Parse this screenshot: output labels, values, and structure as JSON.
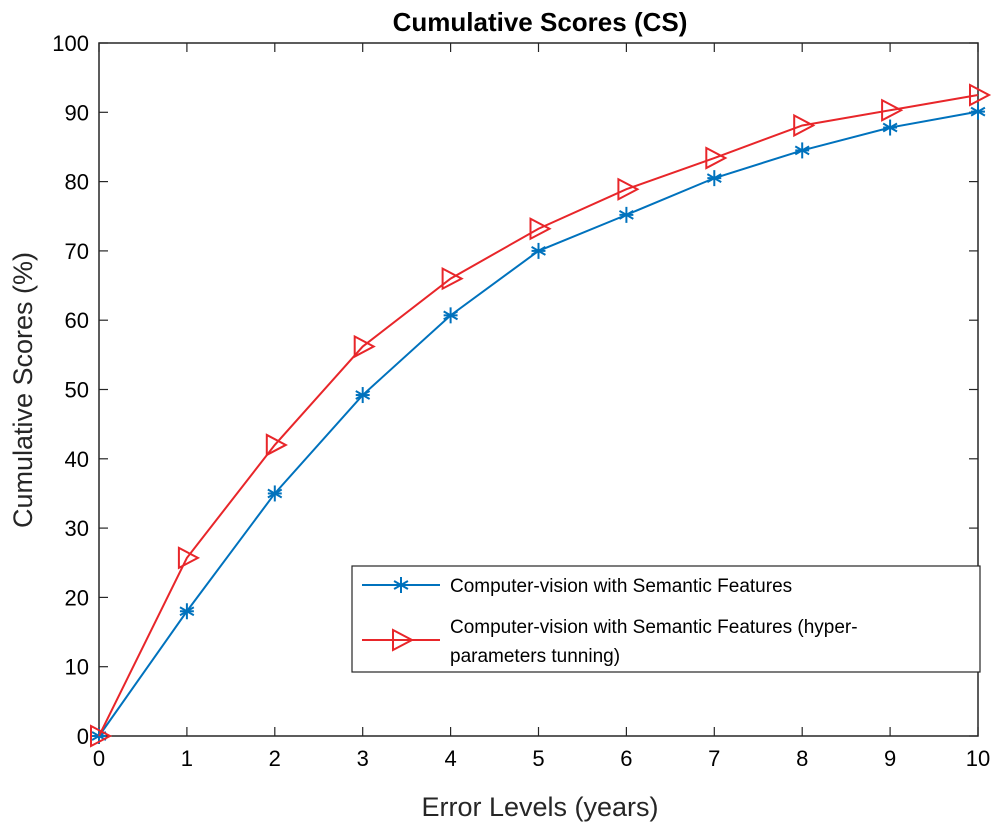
{
  "chart_data": {
    "type": "line",
    "title": "Cumulative Scores (CS)",
    "xlabel": "Error Levels (years)",
    "ylabel": "Cumulative Scores (%)",
    "x": [
      0,
      1,
      2,
      3,
      4,
      5,
      6,
      7,
      8,
      9,
      10
    ],
    "xlim": [
      0,
      10
    ],
    "ylim": [
      0,
      100
    ],
    "xticks": [
      "0",
      "1",
      "2",
      "3",
      "4",
      "5",
      "6",
      "7",
      "8",
      "9",
      "10"
    ],
    "yticks": [
      "0",
      "10",
      "20",
      "30",
      "40",
      "50",
      "60",
      "70",
      "80",
      "90",
      "100"
    ],
    "grid": false,
    "legend_position": "lower-right",
    "series": [
      {
        "name": "Computer-vision with Semantic Features",
        "legend_lines": [
          "Computer-vision with Semantic Features"
        ],
        "color": "#0072BD",
        "marker": "asterisk",
        "values": [
          0,
          18,
          35,
          49.2,
          60.7,
          70,
          75.2,
          80.5,
          84.5,
          87.8,
          90.1
        ]
      },
      {
        "name": "Computer-vision with Semantic Features (hyper-parameters tunning)",
        "legend_lines": [
          "Computer-vision with Semantic Features (hyper-",
          "parameters tunning)"
        ],
        "color": "#E8262A",
        "marker": "triangle-right",
        "values": [
          0,
          25.7,
          42,
          56.2,
          66,
          73.2,
          78.9,
          83.4,
          88.1,
          90.3,
          92.5
        ]
      }
    ]
  }
}
